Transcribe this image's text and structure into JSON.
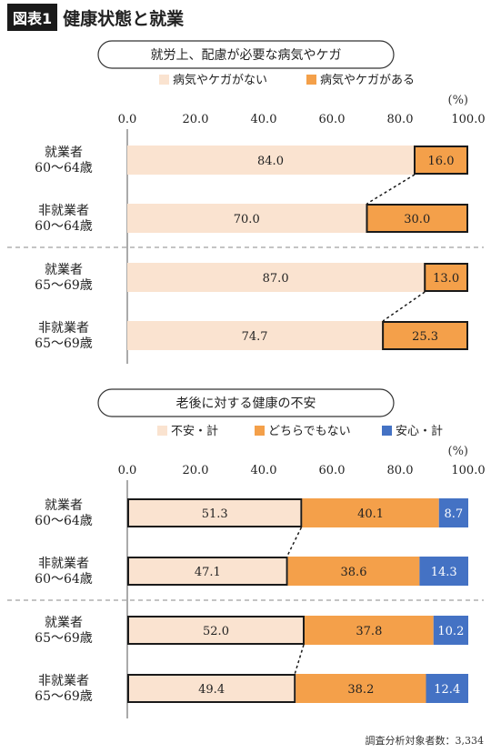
{
  "header": {
    "badge": "図表1",
    "title": "健康状態と就業"
  },
  "footnote": "調査分析対象者数：3,334",
  "colors": {
    "light": "#fae3d0",
    "orange": "#f4a04a",
    "blue": "#4472c4",
    "axis": "#555555",
    "grid": "#cccccc"
  },
  "chart_data": [
    {
      "type": "bar",
      "orientation": "horizontal",
      "stacked": true,
      "title": "就労上、配慮が必要な病気やケガ",
      "unit": "(%)",
      "xlim": [
        0,
        100
      ],
      "ticks": [
        "0.0",
        "20.0",
        "40.0",
        "60.0",
        "80.0",
        "100.0"
      ],
      "legend_position": "top-right",
      "categories": [
        [
          "就業者",
          "60〜64歳"
        ],
        [
          "非就業者",
          "60〜64歳"
        ],
        [
          "就業者",
          "65〜69歳"
        ],
        [
          "非就業者",
          "65〜69歳"
        ]
      ],
      "series": [
        {
          "name": "病気やケガがない",
          "color": "#fae3d0",
          "values": [
            84.0,
            70.0,
            87.0,
            74.7
          ],
          "labels": [
            "84.0",
            "70.0",
            "87.0",
            "74.7"
          ]
        },
        {
          "name": "病気やケガがある",
          "color": "#f4a04a",
          "values": [
            16.0,
            30.0,
            13.0,
            25.3
          ],
          "labels": [
            "16.0",
            "30.0",
            "13.0",
            "25.3"
          ],
          "highlight": true
        }
      ]
    },
    {
      "type": "bar",
      "orientation": "horizontal",
      "stacked": true,
      "title": "老後に対する健康の不安",
      "unit": "(%)",
      "xlim": [
        0,
        100
      ],
      "ticks": [
        "0.0",
        "20.0",
        "40.0",
        "60.0",
        "80.0",
        "100.0"
      ],
      "legend_position": "top-right",
      "categories": [
        [
          "就業者",
          "60〜64歳"
        ],
        [
          "非就業者",
          "60〜64歳"
        ],
        [
          "就業者",
          "65〜69歳"
        ],
        [
          "非就業者",
          "65〜69歳"
        ]
      ],
      "series": [
        {
          "name": "不安・計",
          "color": "#fae3d0",
          "values": [
            51.3,
            47.1,
            52.0,
            49.4
          ],
          "labels": [
            "51.3",
            "47.1",
            "52.0",
            "49.4"
          ],
          "highlight": true
        },
        {
          "name": "どちらでもない",
          "color": "#f4a04a",
          "values": [
            40.1,
            38.6,
            37.8,
            38.2
          ],
          "labels": [
            "40.1",
            "38.6",
            "37.8",
            "38.2"
          ]
        },
        {
          "name": "安心・計",
          "color": "#4472c4",
          "values": [
            8.7,
            14.3,
            10.2,
            12.4
          ],
          "labels": [
            "8.7",
            "14.3",
            "10.2",
            "12.4"
          ]
        }
      ]
    }
  ]
}
